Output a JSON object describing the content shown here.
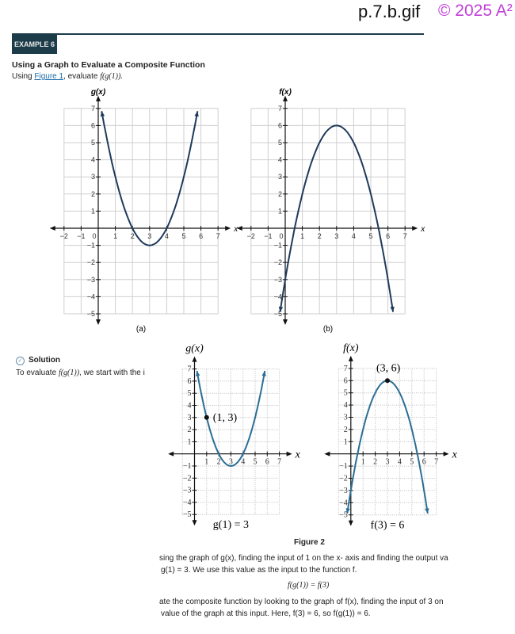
{
  "header": {
    "filename": "p.7.b.gif",
    "copyright": "© 2025 A²"
  },
  "example": {
    "badge": "EXAMPLE 6",
    "title": "Using a Graph to Evaluate a Composite Function",
    "prompt_pre": "Using ",
    "prompt_link": "Figure 1",
    "prompt_post": ", evaluate ",
    "prompt_expr": "f(g(1))."
  },
  "solution": {
    "label": "Solution",
    "text_pre": "To evaluate ",
    "text_expr": "f(g(1))",
    "text_post": ", we start with the i"
  },
  "figure2": {
    "caption": "Figure 2"
  },
  "body": {
    "p1a": "sing the graph of g(x), finding the input of 1 on the x- axis and finding the output va",
    "p1b": "g(1) = 3. We use this value as the input to the function f.",
    "eq": "f(g(1)) = f(3)",
    "p2a": "ate the composite function by looking to the graph of f(x), finding the input of 3 on",
    "p2b": "value of the graph at this input. Here, f(3) = 6, so f(g(1)) = 6."
  },
  "colors": {
    "fig1_curve": "#1e3a5c",
    "fig2_curve": "#2b6e96",
    "header_bar": "#1c3c4a",
    "watermark": "#c040d8"
  },
  "chart_data": [
    {
      "type": "line",
      "ylabel": "g(x)",
      "xlabel": "x",
      "caption": "(a)",
      "xlim": [
        -2,
        7
      ],
      "ylim": [
        -5,
        7
      ],
      "xticks": [
        "-2",
        "-1",
        "0",
        "1",
        "2",
        "3",
        "4",
        "5",
        "6",
        "7"
      ],
      "yticks": [
        "-5",
        "-4",
        "-3",
        "-2",
        "-1",
        "1",
        "2",
        "3",
        "4",
        "5",
        "6",
        "7"
      ],
      "grid": true,
      "curve": {
        "form": "a(x-h)^2+k",
        "a": 1,
        "h": 3,
        "k": -1,
        "domain": [
          0.2,
          5.8
        ]
      }
    },
    {
      "type": "line",
      "ylabel": "f(x)",
      "xlabel": "x",
      "caption": "(b)",
      "xlim": [
        -2,
        7
      ],
      "ylim": [
        -5,
        7
      ],
      "xticks": [
        "-2",
        "-1",
        "0",
        "1",
        "2",
        "3",
        "4",
        "5",
        "6",
        "7"
      ],
      "yticks": [
        "-5",
        "-4",
        "-3",
        "-2",
        "-1",
        "1",
        "2",
        "3",
        "4",
        "5",
        "6",
        "7"
      ],
      "grid": true,
      "curve": {
        "form": "a(x-h)^2+k",
        "a": -1,
        "h": 3,
        "k": 6,
        "domain": [
          -0.3,
          6.3
        ]
      }
    },
    {
      "type": "line",
      "ylabel": "g(x)",
      "xlabel": "x",
      "caption": "g(1) = 3",
      "xlim": [
        -1,
        7
      ],
      "ylim": [
        -5,
        7
      ],
      "xticks": [
        "1",
        "2",
        "3",
        "4",
        "5",
        "6",
        "7"
      ],
      "yticks": [
        "-5",
        "-4",
        "-3",
        "-2",
        "-1",
        "1",
        "2",
        "3",
        "4",
        "5",
        "6",
        "7"
      ],
      "grid": true,
      "curve": {
        "form": "a(x-h)^2+k",
        "a": 1,
        "h": 3,
        "k": -1,
        "domain": [
          0.2,
          5.8
        ]
      },
      "point": {
        "x": 1,
        "y": 3,
        "label": "(1, 3)"
      }
    },
    {
      "type": "line",
      "ylabel": "f(x)",
      "xlabel": "x",
      "caption": "f(3) = 6",
      "xlim": [
        -1,
        7
      ],
      "ylim": [
        -5,
        7
      ],
      "xticks": [
        "1",
        "2",
        "3",
        "4",
        "5",
        "6",
        "7"
      ],
      "yticks": [
        "-5",
        "-4",
        "-3",
        "-2",
        "-1",
        "1",
        "2",
        "3",
        "4",
        "5",
        "6",
        "7"
      ],
      "grid": true,
      "curve": {
        "form": "a(x-h)^2+k",
        "a": -1,
        "h": 3,
        "k": 6,
        "domain": [
          -0.3,
          6.3
        ]
      },
      "point": {
        "x": 3,
        "y": 6,
        "label": "(3, 6)"
      }
    }
  ]
}
